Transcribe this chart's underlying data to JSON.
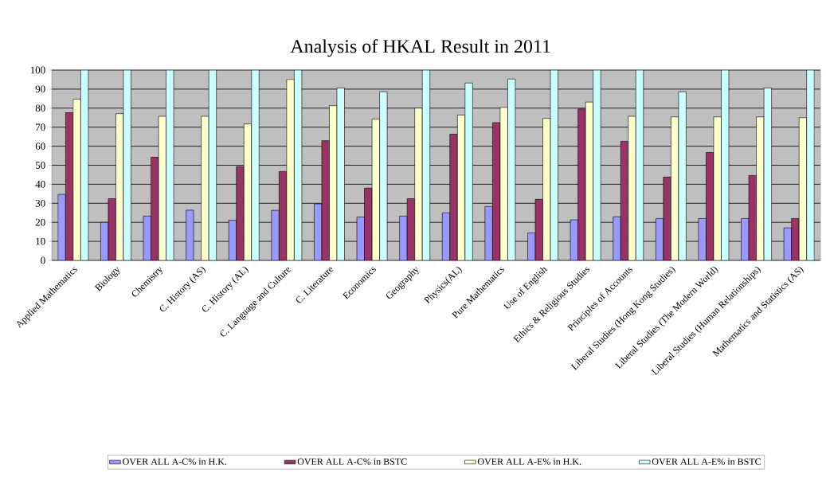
{
  "chart_data": {
    "type": "bar",
    "title": "Analysis of HKAL Result in 2011",
    "categories": [
      "Applied Mathematics",
      "Biology",
      "Chemistry",
      "C. History (AS)",
      "C. History (AL)",
      "C. Language and Culture",
      "C. Literature",
      "Economics",
      "Geography",
      "Physics(AL)",
      "Pure Mathematics",
      "Use of English",
      "Ethics & Religious Studies",
      "Principles of Accounts",
      "Liberal Studies  (Hong Kong Studies)",
      "Liberal Studies  (The Modern World)",
      "Liberal Studies  (Human Relationships)",
      "Mathematics and Statistics (AS)"
    ],
    "series": [
      {
        "name": "OVER ALL A-C% in H.K.",
        "color": "#9999ff",
        "values": [
          34.7,
          20,
          23.3,
          26.4,
          21.1,
          26.3,
          29.7,
          22.8,
          23.3,
          25,
          28.3,
          14.4,
          21.3,
          22.9,
          22,
          22,
          22,
          17.1
        ]
      },
      {
        "name": "OVER ALL A-C% in BSTC",
        "color": "#993366",
        "values": [
          77.6,
          32.4,
          54.2,
          null,
          49.3,
          46.7,
          62.9,
          38,
          32.4,
          66.3,
          72.4,
          32.1,
          79.6,
          62.6,
          43.8,
          56.7,
          44.6,
          22
        ]
      },
      {
        "name": "OVER ALL A-E% in H.K.",
        "color": "#ffffcc",
        "values": [
          84.7,
          77.1,
          75.7,
          75.7,
          71.7,
          95.1,
          81.3,
          74.3,
          80,
          76.4,
          80.4,
          74.6,
          83.2,
          75.7,
          75.4,
          75.4,
          75.4,
          75
        ]
      },
      {
        "name": "OVER ALL A-E% in BSTC",
        "color": "#ccffff",
        "values": [
          100,
          100,
          100,
          100,
          100,
          100,
          90.6,
          88.6,
          100,
          93.2,
          95.3,
          100,
          100,
          100,
          88.6,
          100,
          90.6,
          100
        ]
      }
    ],
    "ylim": [
      0,
      100
    ],
    "yticks": [
      0,
      10,
      20,
      30,
      40,
      50,
      60,
      70,
      80,
      90,
      100
    ],
    "grid": "y",
    "legend": "bottom"
  }
}
